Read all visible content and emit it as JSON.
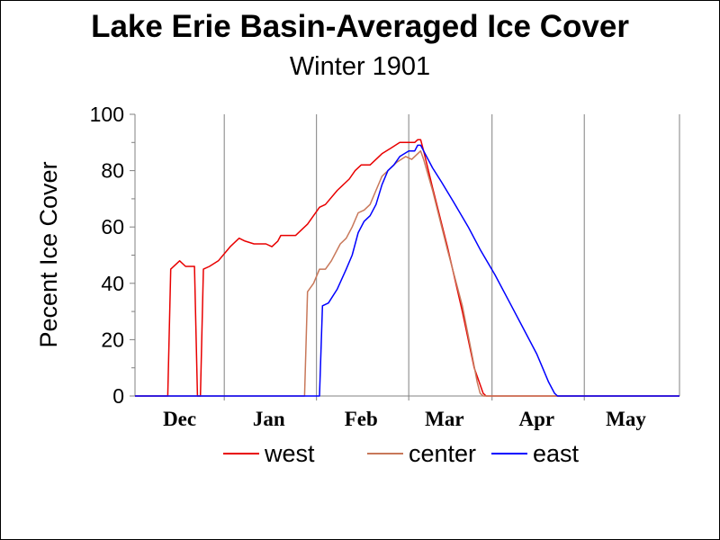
{
  "chart_data": {
    "type": "line",
    "title": "Lake Erie Basin-Averaged Ice Cover",
    "subtitle": "Winter 1901",
    "xlabel": "",
    "ylabel": "Pecent Ice Cover",
    "ylim": [
      0,
      100
    ],
    "yticks": [
      0,
      20,
      40,
      60,
      80,
      100
    ],
    "x_unit": "days since Nov 23",
    "xlim": [
      0,
      183
    ],
    "month_labels": [
      {
        "label": "Dec",
        "x": 15
      },
      {
        "label": "Jan",
        "x": 45
      },
      {
        "label": "Feb",
        "x": 76
      },
      {
        "label": "Mar",
        "x": 104
      },
      {
        "label": "Apr",
        "x": 135
      },
      {
        "label": "May",
        "x": 165
      }
    ],
    "month_boundaries": [
      30,
      61,
      92,
      120,
      151
    ],
    "grid": "vertical at month boundaries",
    "legend": "bottom",
    "series": [
      {
        "name": "west",
        "color": "#e80000",
        "points": [
          [
            0,
            0
          ],
          [
            11,
            0
          ],
          [
            12,
            45
          ],
          [
            15,
            48
          ],
          [
            17,
            46
          ],
          [
            20,
            46
          ],
          [
            21,
            0
          ],
          [
            22,
            0
          ],
          [
            23,
            45
          ],
          [
            25,
            46
          ],
          [
            28,
            48
          ],
          [
            32,
            53
          ],
          [
            35,
            56
          ],
          [
            37,
            55
          ],
          [
            40,
            54
          ],
          [
            44,
            54
          ],
          [
            46,
            53
          ],
          [
            48,
            55
          ],
          [
            49,
            57
          ],
          [
            54,
            57
          ],
          [
            56,
            59
          ],
          [
            58,
            61
          ],
          [
            62,
            67
          ],
          [
            64,
            68
          ],
          [
            68,
            73
          ],
          [
            72,
            77
          ],
          [
            74,
            80
          ],
          [
            76,
            82
          ],
          [
            79,
            82
          ],
          [
            83,
            86
          ],
          [
            86,
            88
          ],
          [
            89,
            90
          ],
          [
            94,
            90
          ],
          [
            95,
            91
          ],
          [
            96,
            91
          ],
          [
            97,
            87
          ],
          [
            100,
            74
          ],
          [
            105,
            53
          ],
          [
            110,
            30
          ],
          [
            114,
            10
          ],
          [
            117,
            1
          ],
          [
            118,
            0
          ],
          [
            183,
            0
          ]
        ]
      },
      {
        "name": "center",
        "color": "#c8785a",
        "points": [
          [
            0,
            0
          ],
          [
            57,
            0
          ],
          [
            58,
            37
          ],
          [
            60,
            40
          ],
          [
            62,
            45
          ],
          [
            64,
            45
          ],
          [
            66,
            48
          ],
          [
            69,
            54
          ],
          [
            71,
            56
          ],
          [
            73,
            60
          ],
          [
            75,
            65
          ],
          [
            77,
            66
          ],
          [
            79,
            68
          ],
          [
            81,
            73
          ],
          [
            83,
            78
          ],
          [
            86,
            81
          ],
          [
            88,
            83
          ],
          [
            91,
            85
          ],
          [
            93,
            84
          ],
          [
            95,
            86
          ],
          [
            96,
            87
          ],
          [
            97,
            84
          ],
          [
            100,
            73
          ],
          [
            105,
            52
          ],
          [
            110,
            32
          ],
          [
            113,
            16
          ],
          [
            115,
            5
          ],
          [
            116,
            1
          ],
          [
            117,
            0
          ],
          [
            183,
            0
          ]
        ]
      },
      {
        "name": "east",
        "color": "#0000ff",
        "points": [
          [
            0,
            0
          ],
          [
            62,
            0
          ],
          [
            63,
            32
          ],
          [
            65,
            33
          ],
          [
            68,
            38
          ],
          [
            71,
            45
          ],
          [
            73,
            50
          ],
          [
            75,
            58
          ],
          [
            77,
            62
          ],
          [
            79,
            64
          ],
          [
            81,
            68
          ],
          [
            83,
            75
          ],
          [
            85,
            80
          ],
          [
            87,
            82
          ],
          [
            89,
            85
          ],
          [
            92,
            87
          ],
          [
            94,
            87
          ],
          [
            95,
            89
          ],
          [
            96,
            89
          ],
          [
            97,
            87
          ],
          [
            100,
            81
          ],
          [
            103,
            76
          ],
          [
            107,
            69
          ],
          [
            112,
            60
          ],
          [
            116,
            52
          ],
          [
            121,
            43
          ],
          [
            126,
            33
          ],
          [
            131,
            23
          ],
          [
            135,
            15
          ],
          [
            137,
            10
          ],
          [
            139,
            5
          ],
          [
            141,
            1
          ],
          [
            142,
            0
          ],
          [
            183,
            0
          ]
        ]
      }
    ]
  }
}
